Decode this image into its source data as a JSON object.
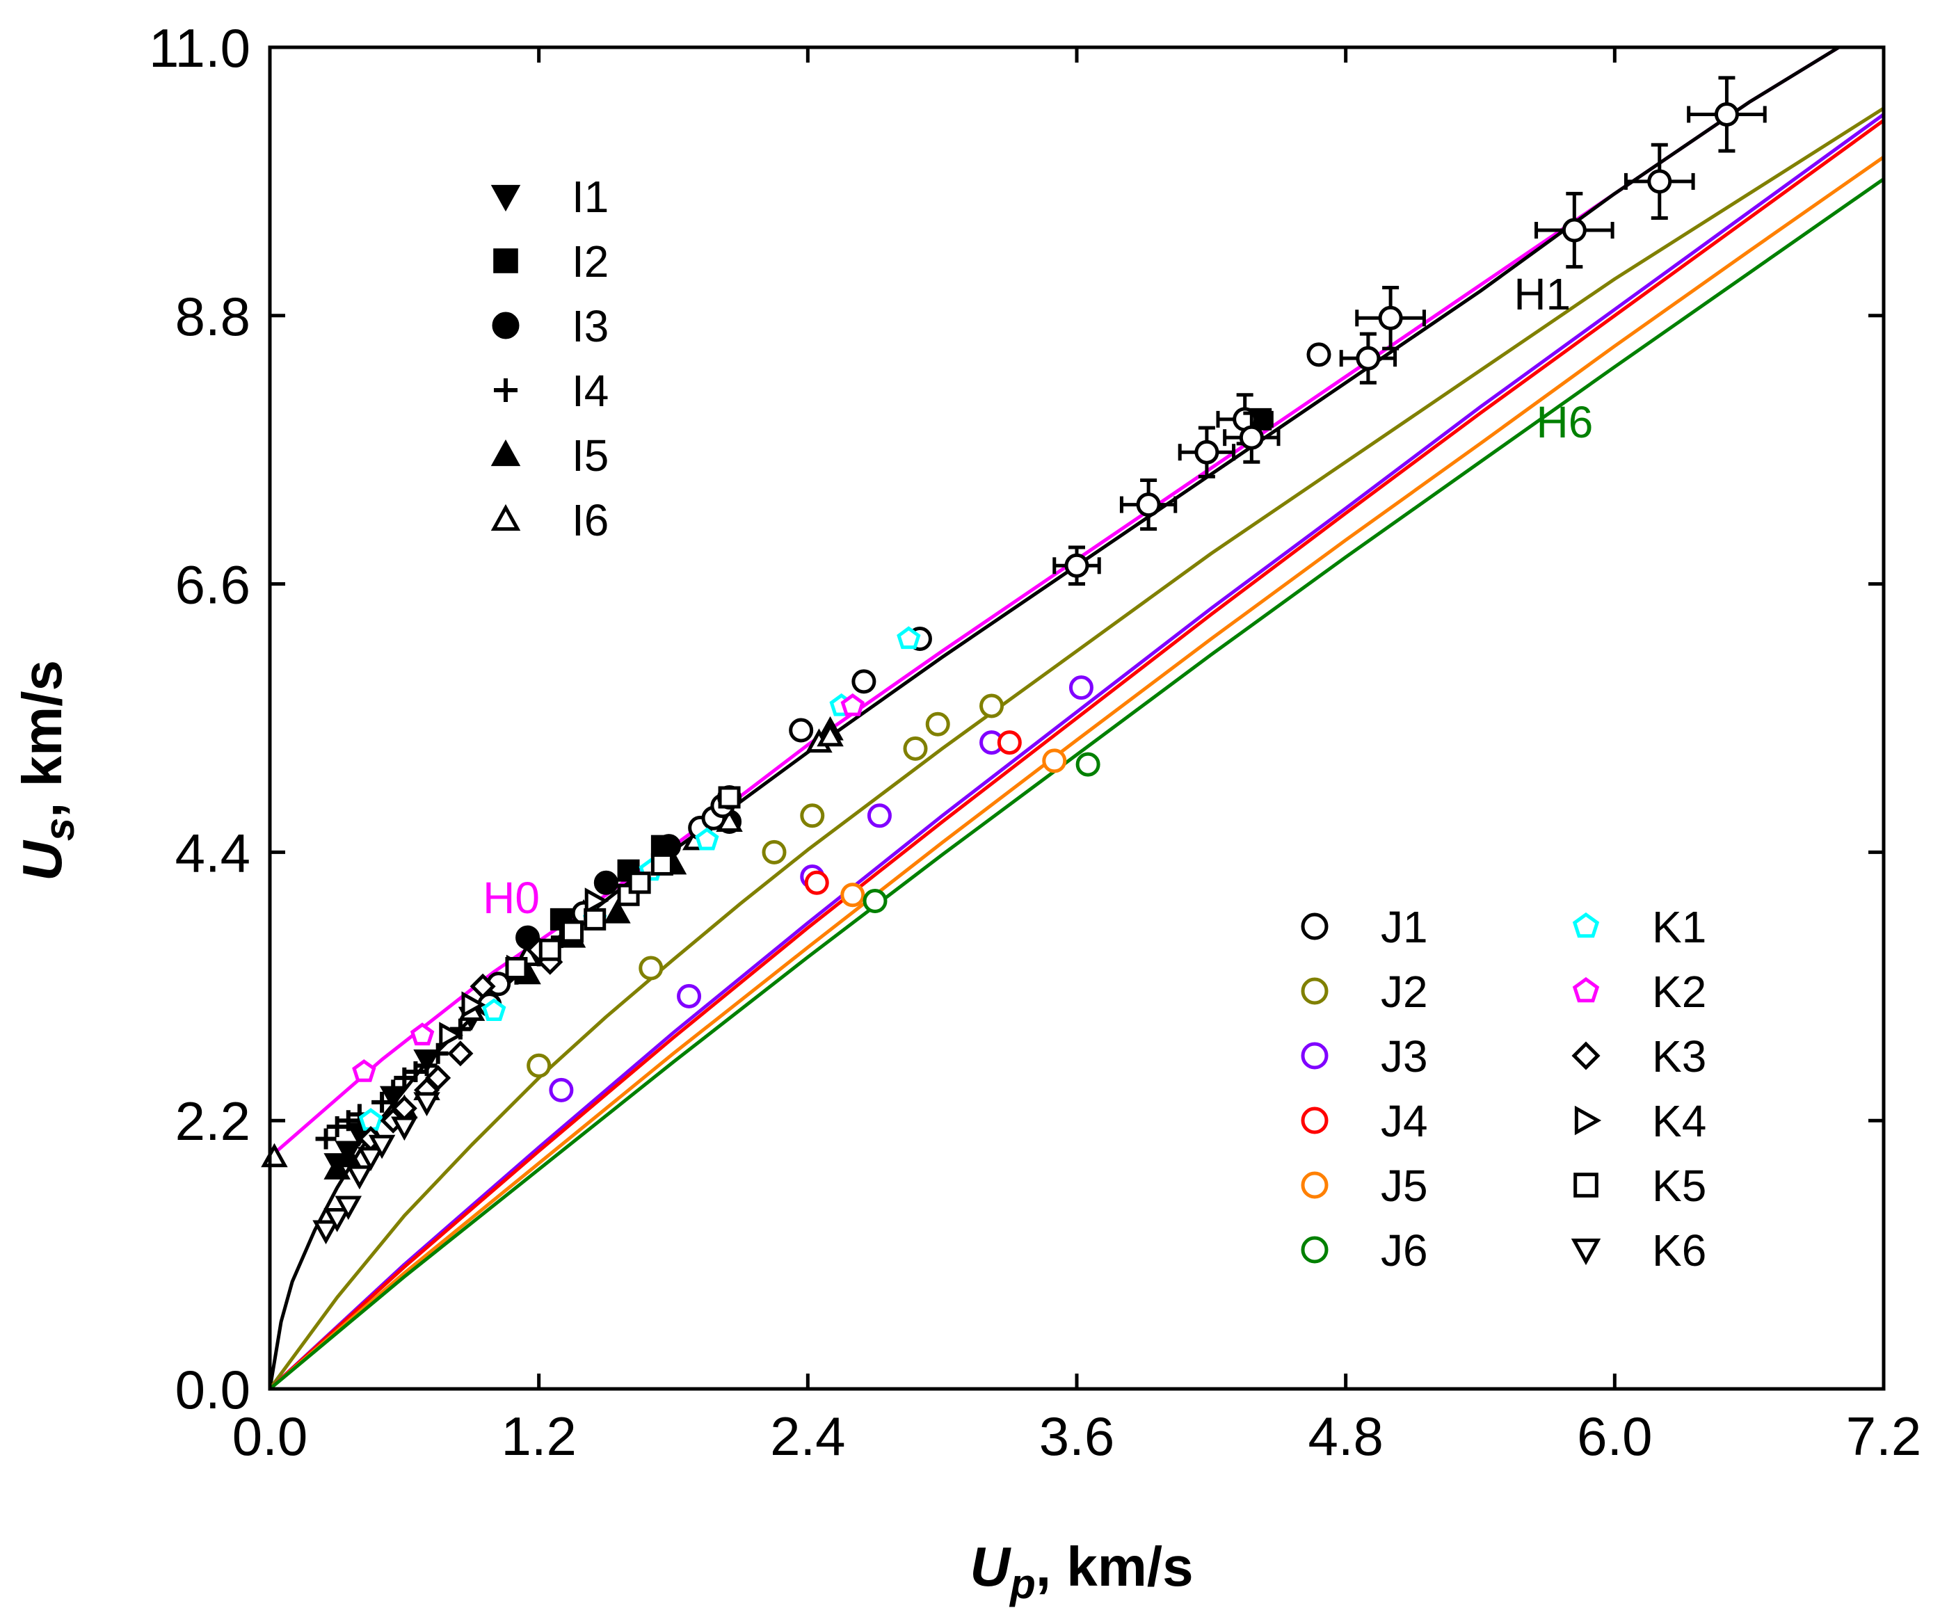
{
  "chart_data": {
    "type": "scatter",
    "title": "",
    "xlabel": {
      "main": "U",
      "sub": "p",
      "unit": ", km/s"
    },
    "ylabel": {
      "main": "U",
      "sub": "s",
      "unit": ", km/s"
    },
    "xlim": [
      0.0,
      7.2
    ],
    "ylim": [
      0.0,
      11.0
    ],
    "xticks": [
      "0.0",
      "1.2",
      "2.4",
      "3.6",
      "4.8",
      "6.0",
      "7.2"
    ],
    "yticks": [
      "0.0",
      "2.2",
      "4.4",
      "6.6",
      "8.8",
      "11.0"
    ],
    "grid": false,
    "curves": [
      {
        "name": "H0",
        "color": "#ff00ff",
        "label": "H0",
        "label_at": [
          0.95,
          3.9
        ],
        "points": [
          [
            0,
            1.9
          ],
          [
            0.5,
            2.7
          ],
          [
            1.0,
            3.42
          ],
          [
            1.5,
            4.05
          ],
          [
            2.0,
            4.72
          ],
          [
            2.4,
            5.28
          ],
          [
            3.0,
            6.05
          ],
          [
            3.6,
            6.8
          ],
          [
            4.2,
            7.55
          ],
          [
            4.8,
            8.3
          ],
          [
            5.4,
            9.05
          ],
          [
            6.0,
            9.8
          ],
          [
            6.6,
            10.55
          ],
          [
            7.0,
            11.0
          ]
        ]
      },
      {
        "name": "H1",
        "color": "#000000",
        "label": "H1",
        "label_at": [
          5.55,
          8.85
        ],
        "points": [
          [
            0,
            0
          ],
          [
            0.05,
            0.55
          ],
          [
            0.1,
            0.88
          ],
          [
            0.2,
            1.3
          ],
          [
            0.3,
            1.65
          ],
          [
            0.4,
            1.95
          ],
          [
            0.5,
            2.22
          ],
          [
            0.7,
            2.68
          ],
          [
            1.0,
            3.22
          ],
          [
            1.3,
            3.72
          ],
          [
            1.6,
            4.15
          ],
          [
            2.0,
            4.68
          ],
          [
            2.4,
            5.22
          ],
          [
            3.0,
            6.0
          ],
          [
            3.6,
            6.75
          ],
          [
            4.2,
            7.5
          ],
          [
            4.8,
            8.25
          ],
          [
            5.4,
            9.0
          ],
          [
            6.0,
            9.8
          ],
          [
            6.6,
            10.55
          ],
          [
            7.0,
            11.0
          ]
        ]
      },
      {
        "name": "J2",
        "color": "#808000",
        "label": "",
        "label_at": null,
        "points": [
          [
            0,
            0
          ],
          [
            0.3,
            0.75
          ],
          [
            0.6,
            1.42
          ],
          [
            0.9,
            2.0
          ],
          [
            1.2,
            2.55
          ],
          [
            1.5,
            3.05
          ],
          [
            1.8,
            3.52
          ],
          [
            2.1,
            3.98
          ],
          [
            2.4,
            4.42
          ],
          [
            3.0,
            5.25
          ],
          [
            3.6,
            6.05
          ],
          [
            4.2,
            6.85
          ],
          [
            4.8,
            7.6
          ],
          [
            5.4,
            8.35
          ],
          [
            6.0,
            9.1
          ],
          [
            6.6,
            9.8
          ],
          [
            7.2,
            10.5
          ]
        ]
      },
      {
        "name": "J3",
        "color": "#8000ff",
        "label": "",
        "label_at": null,
        "points": [
          [
            0,
            0
          ],
          [
            0.6,
            1.02
          ],
          [
            1.2,
            1.98
          ],
          [
            1.8,
            2.92
          ],
          [
            2.4,
            3.82
          ],
          [
            3.0,
            4.7
          ],
          [
            3.6,
            5.55
          ],
          [
            4.2,
            6.4
          ],
          [
            4.8,
            7.22
          ],
          [
            5.4,
            8.05
          ],
          [
            6.0,
            8.85
          ],
          [
            6.6,
            9.65
          ],
          [
            7.2,
            10.45
          ]
        ]
      },
      {
        "name": "J4",
        "color": "#ff0000",
        "label": "",
        "label_at": null,
        "points": [
          [
            0,
            0
          ],
          [
            0.6,
            1.0
          ],
          [
            1.2,
            1.95
          ],
          [
            1.8,
            2.88
          ],
          [
            2.4,
            3.78
          ],
          [
            3.0,
            4.65
          ],
          [
            3.6,
            5.5
          ],
          [
            4.2,
            6.35
          ],
          [
            4.8,
            7.18
          ],
          [
            5.4,
            8.0
          ],
          [
            6.0,
            8.8
          ],
          [
            6.6,
            9.6
          ],
          [
            7.2,
            10.4
          ]
        ]
      },
      {
        "name": "J5",
        "color": "#ff8000",
        "label": "",
        "label_at": null,
        "points": [
          [
            0,
            0
          ],
          [
            0.6,
            0.95
          ],
          [
            1.2,
            1.85
          ],
          [
            1.8,
            2.75
          ],
          [
            2.4,
            3.62
          ],
          [
            3.0,
            4.48
          ],
          [
            3.6,
            5.32
          ],
          [
            4.2,
            6.15
          ],
          [
            4.8,
            6.96
          ],
          [
            5.4,
            7.75
          ],
          [
            6.0,
            8.55
          ],
          [
            6.6,
            9.33
          ],
          [
            7.2,
            10.1
          ]
        ]
      },
      {
        "name": "J6",
        "color": "#008000",
        "label": "H6",
        "label_at": [
          5.65,
          7.8
        ],
        "points": [
          [
            0,
            0
          ],
          [
            0.6,
            0.92
          ],
          [
            1.2,
            1.8
          ],
          [
            1.8,
            2.68
          ],
          [
            2.4,
            3.54
          ],
          [
            3.0,
            4.38
          ],
          [
            3.6,
            5.2
          ],
          [
            4.2,
            6.02
          ],
          [
            4.8,
            6.82
          ],
          [
            5.4,
            7.6
          ],
          [
            6.0,
            8.38
          ],
          [
            6.6,
            9.15
          ],
          [
            7.2,
            9.92
          ]
        ]
      }
    ],
    "series": [
      {
        "name": "I1",
        "symbol": "tri-down",
        "filled": true,
        "color": "#000000",
        "x": [
          0.3,
          0.35,
          0.4,
          0.55,
          0.7,
          0.9
        ],
        "y": [
          1.85,
          1.95,
          2.1,
          2.4,
          2.7,
          3.05
        ]
      },
      {
        "name": "I2",
        "symbol": "square",
        "filled": true,
        "color": "#000000",
        "x": [
          1.3,
          1.6,
          1.75,
          4.42
        ],
        "y": [
          3.85,
          4.25,
          4.45,
          7.95
        ]
      },
      {
        "name": "I3",
        "symbol": "circle",
        "filled": true,
        "color": "#000000",
        "x": [
          1.15,
          1.5,
          1.78,
          2.05
        ],
        "y": [
          3.7,
          4.15,
          4.45,
          4.65
        ]
      },
      {
        "name": "I4",
        "symbol": "plus",
        "filled": false,
        "color": "#000000",
        "x": [
          0.25,
          0.3,
          0.35,
          0.4,
          0.5,
          0.55,
          0.6,
          0.65,
          0.7,
          0.75,
          0.85,
          1.1,
          1.2,
          1.3
        ],
        "y": [
          2.05,
          2.15,
          2.2,
          2.25,
          2.35,
          2.45,
          2.55,
          2.6,
          2.65,
          2.75,
          2.95,
          3.4,
          3.55,
          3.7
        ]
      },
      {
        "name": "I5",
        "symbol": "tri-up",
        "filled": true,
        "color": "#000000",
        "x": [
          0.3,
          0.35,
          0.45,
          0.6,
          0.7,
          1.15,
          1.35,
          1.55,
          1.8,
          2.5
        ],
        "y": [
          1.8,
          1.9,
          2.1,
          2.3,
          2.45,
          3.4,
          3.7,
          3.9,
          4.3,
          5.4
        ]
      },
      {
        "name": "I6",
        "symbol": "tri-up",
        "filled": false,
        "color": "#000000",
        "x": [
          0.02,
          0.9,
          1.15,
          1.4,
          1.9,
          2.05,
          2.45,
          2.5
        ],
        "y": [
          1.9,
          3.1,
          3.55,
          3.9,
          4.5,
          4.65,
          5.3,
          5.35
        ]
      },
      {
        "name": "J1",
        "symbol": "circle",
        "filled": false,
        "color": "#000000",
        "x": [
          0.98,
          1.02,
          1.4,
          1.92,
          1.98,
          2.02,
          2.05,
          2.37,
          2.65,
          2.9,
          3.6,
          3.92,
          4.18,
          4.35,
          4.38,
          4.68,
          4.9,
          5.0,
          5.82,
          6.2,
          6.5
        ],
        "y": [
          3.15,
          3.32,
          3.9,
          4.6,
          4.68,
          4.78,
          4.85,
          5.4,
          5.8,
          6.15,
          6.75,
          7.25,
          7.68,
          7.95,
          7.8,
          8.48,
          8.45,
          8.78,
          9.5,
          9.9,
          10.45
        ],
        "xerr": [
          0,
          0,
          0,
          0,
          0,
          0,
          0,
          0,
          0,
          0,
          0.1,
          0.12,
          0.12,
          0.12,
          0.12,
          0,
          0.12,
          0.15,
          0.17,
          0.15,
          0.17
        ],
        "yerr": [
          0,
          0,
          0,
          0,
          0,
          0,
          0,
          0,
          0,
          0,
          0.15,
          0.2,
          0.2,
          0.2,
          0.2,
          0,
          0.2,
          0.25,
          0.3,
          0.3,
          0.3
        ]
      },
      {
        "name": "J2",
        "symbol": "circle",
        "filled": false,
        "color": "#808000",
        "x": [
          1.2,
          1.7,
          2.25,
          2.42,
          2.88,
          2.98,
          3.22
        ],
        "y": [
          2.65,
          3.45,
          4.4,
          4.7,
          5.25,
          5.45,
          5.6
        ]
      },
      {
        "name": "J3",
        "symbol": "circle",
        "filled": false,
        "color": "#8000ff",
        "x": [
          1.3,
          1.87,
          2.42,
          2.72,
          3.22,
          3.62
        ],
        "y": [
          2.45,
          3.22,
          4.2,
          4.7,
          5.3,
          5.75
        ]
      },
      {
        "name": "J4",
        "symbol": "circle",
        "filled": false,
        "color": "#ff0000",
        "x": [
          2.44,
          3.3
        ],
        "y": [
          4.15,
          5.3
        ]
      },
      {
        "name": "J5",
        "symbol": "circle",
        "filled": false,
        "color": "#ff8000",
        "x": [
          2.6,
          3.5
        ],
        "y": [
          4.05,
          5.15
        ]
      },
      {
        "name": "J6",
        "symbol": "circle",
        "filled": false,
        "color": "#008000",
        "x": [
          2.7,
          3.65
        ],
        "y": [
          4.0,
          5.12
        ]
      },
      {
        "name": "K1",
        "symbol": "pentagon",
        "filled": false,
        "color": "#00ffff",
        "x": [
          0.45,
          1.0,
          1.45,
          1.7,
          1.95,
          2.55,
          2.85
        ],
        "y": [
          2.2,
          3.1,
          3.85,
          4.25,
          4.5,
          5.6,
          6.15
        ]
      },
      {
        "name": "K2",
        "symbol": "pentagon",
        "filled": false,
        "color": "#ff00ff",
        "x": [
          0.42,
          0.68,
          2.6
        ],
        "y": [
          2.6,
          2.9,
          5.6
        ]
      },
      {
        "name": "K3",
        "symbol": "diamond",
        "filled": false,
        "color": "#000000",
        "x": [
          0.45,
          0.55,
          0.6,
          0.7,
          0.75,
          0.85,
          0.95,
          1.2,
          1.25
        ],
        "y": [
          2.05,
          2.2,
          2.3,
          2.45,
          2.55,
          2.75,
          3.3,
          3.6,
          3.5
        ]
      },
      {
        "name": "K4",
        "symbol": "tri-right",
        "filled": false,
        "color": "#000000",
        "x": [
          0.8,
          0.9,
          1.1,
          1.45
        ],
        "y": [
          2.9,
          3.15,
          3.45,
          4.0
        ]
      },
      {
        "name": "K5",
        "symbol": "square",
        "filled": false,
        "color": "#000000",
        "x": [
          1.1,
          1.25,
          1.35,
          1.45,
          1.6,
          1.65,
          1.75,
          2.05
        ],
        "y": [
          3.45,
          3.6,
          3.75,
          3.85,
          4.05,
          4.15,
          4.3,
          4.85
        ]
      },
      {
        "name": "K6",
        "symbol": "tri-down",
        "filled": false,
        "color": "#000000",
        "x": [
          0.25,
          0.3,
          0.35,
          0.4,
          0.45,
          0.5,
          0.6,
          0.7
        ],
        "y": [
          1.3,
          1.4,
          1.5,
          1.75,
          1.9,
          2.0,
          2.15,
          2.35
        ]
      }
    ],
    "legends": [
      {
        "position": "top-left",
        "entries": [
          "I1",
          "I2",
          "I3",
          "I4",
          "I5",
          "I6"
        ]
      },
      {
        "position": "bottom-right",
        "entries": [
          "J1",
          "J2",
          "J3",
          "J4",
          "J5",
          "J6",
          "K1",
          "K2",
          "K3",
          "K4",
          "K5",
          "K6"
        ]
      }
    ]
  }
}
